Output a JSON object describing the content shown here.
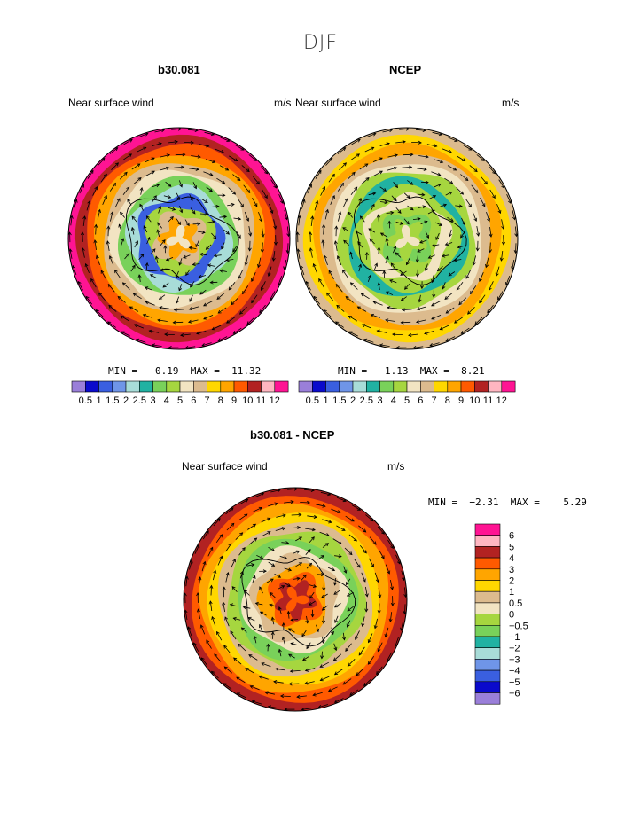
{
  "page": {
    "season": "DJF"
  },
  "panels": [
    {
      "title": "b30.081",
      "left_label": "Near surface wind",
      "units": "m/s",
      "min_text": "MIN =",
      "min_value": "0.19",
      "max_text": "MAX =",
      "max_value": "11.32"
    },
    {
      "title": "NCEP",
      "left_label": "Near surface wind",
      "units": "m/s",
      "min_text": "MIN =",
      "min_value": "1.13",
      "max_text": "MAX =",
      "max_value": "8.21"
    },
    {
      "title": "b30.081 - NCEP",
      "left_label": "Near surface wind",
      "units": "m/s",
      "min_text": "MIN =",
      "min_value": "−2.31",
      "max_text": "MAX =",
      "max_value": "5.29"
    }
  ],
  "colorbars": {
    "abs": {
      "colors": [
        "#9a7fd9",
        "#0a0acc",
        "#3a5fe0",
        "#6f95e8",
        "#a8dcd8",
        "#21b2a2",
        "#79d15a",
        "#a6d63f",
        "#f2e4c2",
        "#dcbb8e",
        "#ffd700",
        "#ffa500",
        "#ff5a00",
        "#b22222",
        "#ffb6c1",
        "#ff1493"
      ],
      "tick_labels": [
        "0.5",
        "1",
        "1.5",
        "2",
        "2.5",
        "3",
        "4",
        "5",
        "6",
        "7",
        "8",
        "9",
        "10",
        "11",
        "12"
      ]
    },
    "diff": {
      "colors": [
        "#9a7fd9",
        "#0a0acc",
        "#3a5fe0",
        "#6f95e8",
        "#a8dcd8",
        "#21b2a2",
        "#79d15a",
        "#a6d63f",
        "#f2e4c2",
        "#dcbb8e",
        "#ffd700",
        "#ffa500",
        "#ff5a00",
        "#b22222",
        "#ffb6c1",
        "#ff1493"
      ],
      "tick_labels": [
        "−6",
        "−5",
        "−4",
        "−3",
        "−2",
        "−1",
        "−0.5",
        "0",
        "0.5",
        "1",
        "2",
        "3",
        "4",
        "5",
        "6"
      ]
    }
  },
  "chart_data": [
    {
      "type": "heatmap",
      "title": "b30.081",
      "subtitle": "Near surface wind",
      "units": "m/s",
      "projection": "south polar stereographic",
      "min": 0.19,
      "max": 11.32,
      "levels": [
        0.5,
        1,
        1.5,
        2,
        2.5,
        3,
        4,
        5,
        6,
        7,
        8,
        9,
        10,
        11,
        12
      ],
      "ring_levels": [
        12,
        10,
        9,
        8,
        6,
        5,
        3,
        2,
        1,
        4,
        6,
        8,
        5
      ],
      "vectors": "wind direction arrows"
    },
    {
      "type": "heatmap",
      "title": "NCEP",
      "subtitle": "Near surface wind",
      "units": "m/s",
      "projection": "south polar stereographic",
      "min": 1.13,
      "max": 8.21,
      "levels": [
        0.5,
        1,
        1.5,
        2,
        2.5,
        3,
        4,
        5,
        6,
        7,
        8,
        9,
        10,
        11,
        12
      ],
      "ring_levels": [
        6,
        7,
        8,
        6,
        5,
        4,
        2.5,
        4,
        5,
        4,
        3,
        4,
        5
      ],
      "vectors": "wind direction arrows"
    },
    {
      "type": "heatmap",
      "title": "b30.081 - NCEP",
      "subtitle": "Near surface wind",
      "units": "m/s",
      "projection": "south polar stereographic",
      "min": -2.31,
      "max": 5.29,
      "levels": [
        -6,
        -5,
        -4,
        -3,
        -2,
        -1,
        -0.5,
        0,
        0.5,
        1,
        2,
        3,
        4,
        5,
        6
      ],
      "ring_levels": [
        4,
        3,
        2,
        1,
        0.5,
        -0.5,
        -1,
        0,
        0.5,
        2,
        3,
        4,
        3
      ],
      "vectors": "wind difference arrows"
    }
  ]
}
